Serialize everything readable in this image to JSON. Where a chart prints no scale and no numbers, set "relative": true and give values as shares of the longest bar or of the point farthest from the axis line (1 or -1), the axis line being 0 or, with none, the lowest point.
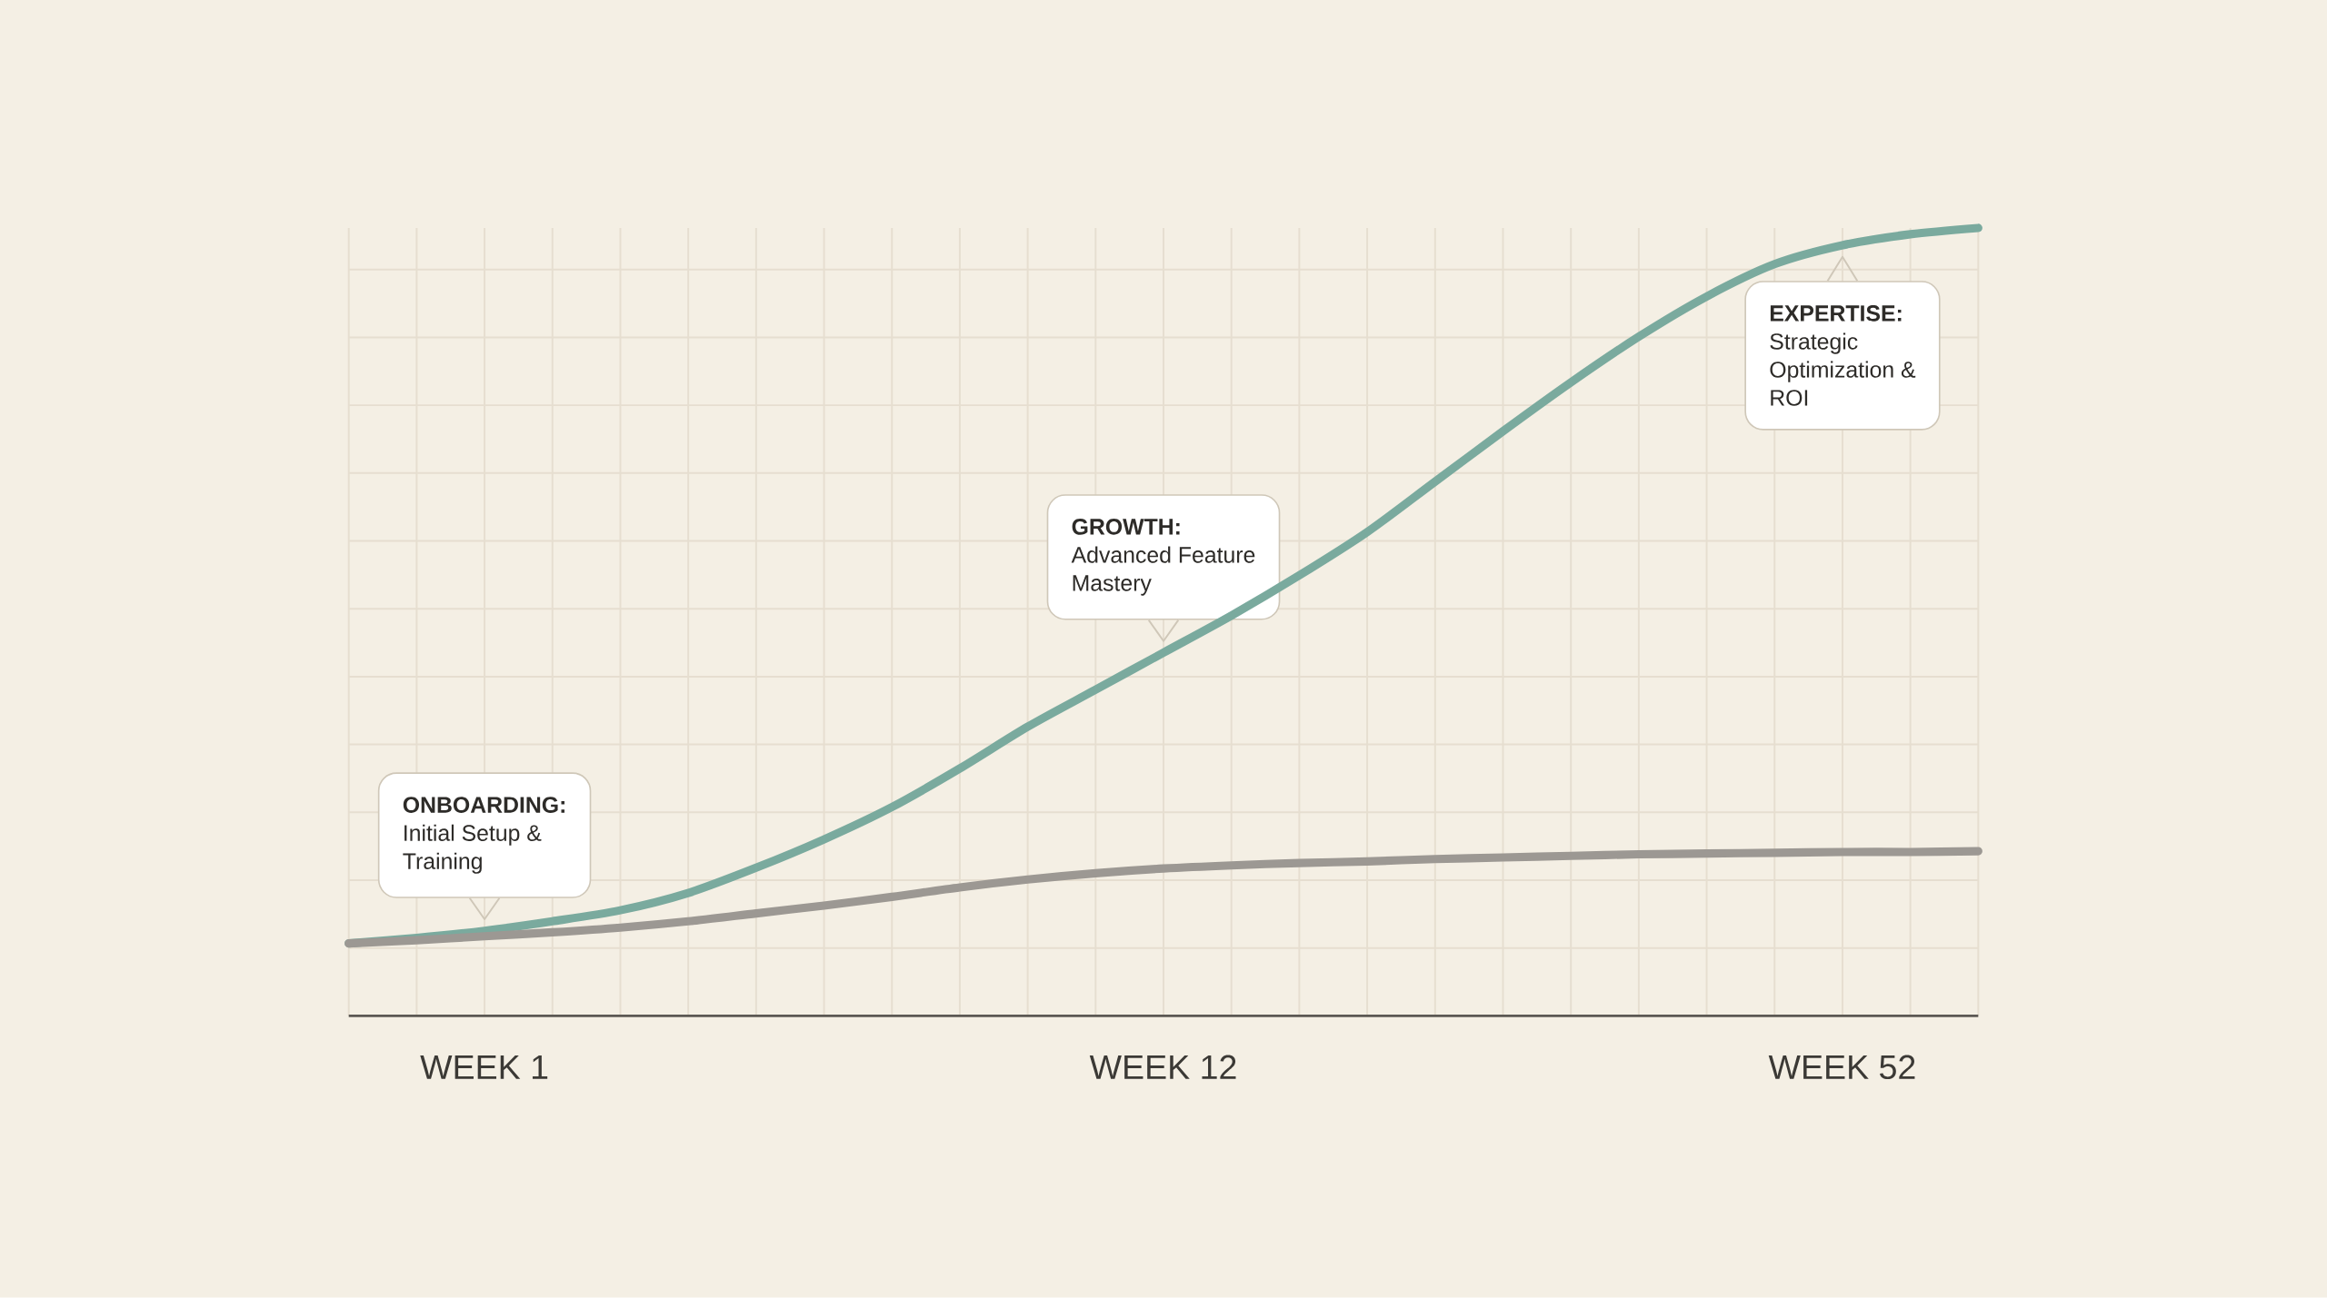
{
  "chart_data": {
    "type": "line",
    "relative": true,
    "categories": [
      null,
      null,
      "WEEK 1",
      null,
      null,
      null,
      null,
      null,
      null,
      null,
      null,
      null,
      "WEEK 12",
      null,
      null,
      null,
      null,
      null,
      null,
      null,
      null,
      null,
      "WEEK 52",
      null,
      null
    ],
    "series": [
      {
        "color": "#7aaa9e",
        "values": [
          0.092,
          0.099,
          0.108,
          0.12,
          0.134,
          0.156,
          0.188,
          0.224,
          0.265,
          0.314,
          0.367,
          0.414,
          0.461,
          0.508,
          0.559,
          0.614,
          0.678,
          0.742,
          0.804,
          0.862,
          0.913,
          0.954,
          0.978,
          0.992,
          1
        ]
      },
      {
        "color": "#9c9893",
        "values": [
          0.092,
          0.096,
          0.101,
          0.106,
          0.112,
          0.12,
          0.13,
          0.14,
          0.151,
          0.163,
          0.173,
          0.181,
          0.187,
          0.191,
          0.194,
          0.196,
          0.199,
          0.201,
          0.203,
          0.205,
          0.206,
          0.207,
          0.208,
          0.208,
          0.209
        ]
      }
    ],
    "grid": true,
    "annotations": [
      {
        "text": "**ONBOARDING:** Initial Setup & Training",
        "x": "WEEK 1",
        "y": 0.108
      },
      {
        "text": "**GROWTH:** Advanced Feature Mastery",
        "x": "WEEK 12",
        "y": 0.461
      },
      {
        "text": "**EXPERTISE:** Strategic Optimization & ROI",
        "x": "WEEK 52",
        "y": 0.978
      }
    ]
  }
}
